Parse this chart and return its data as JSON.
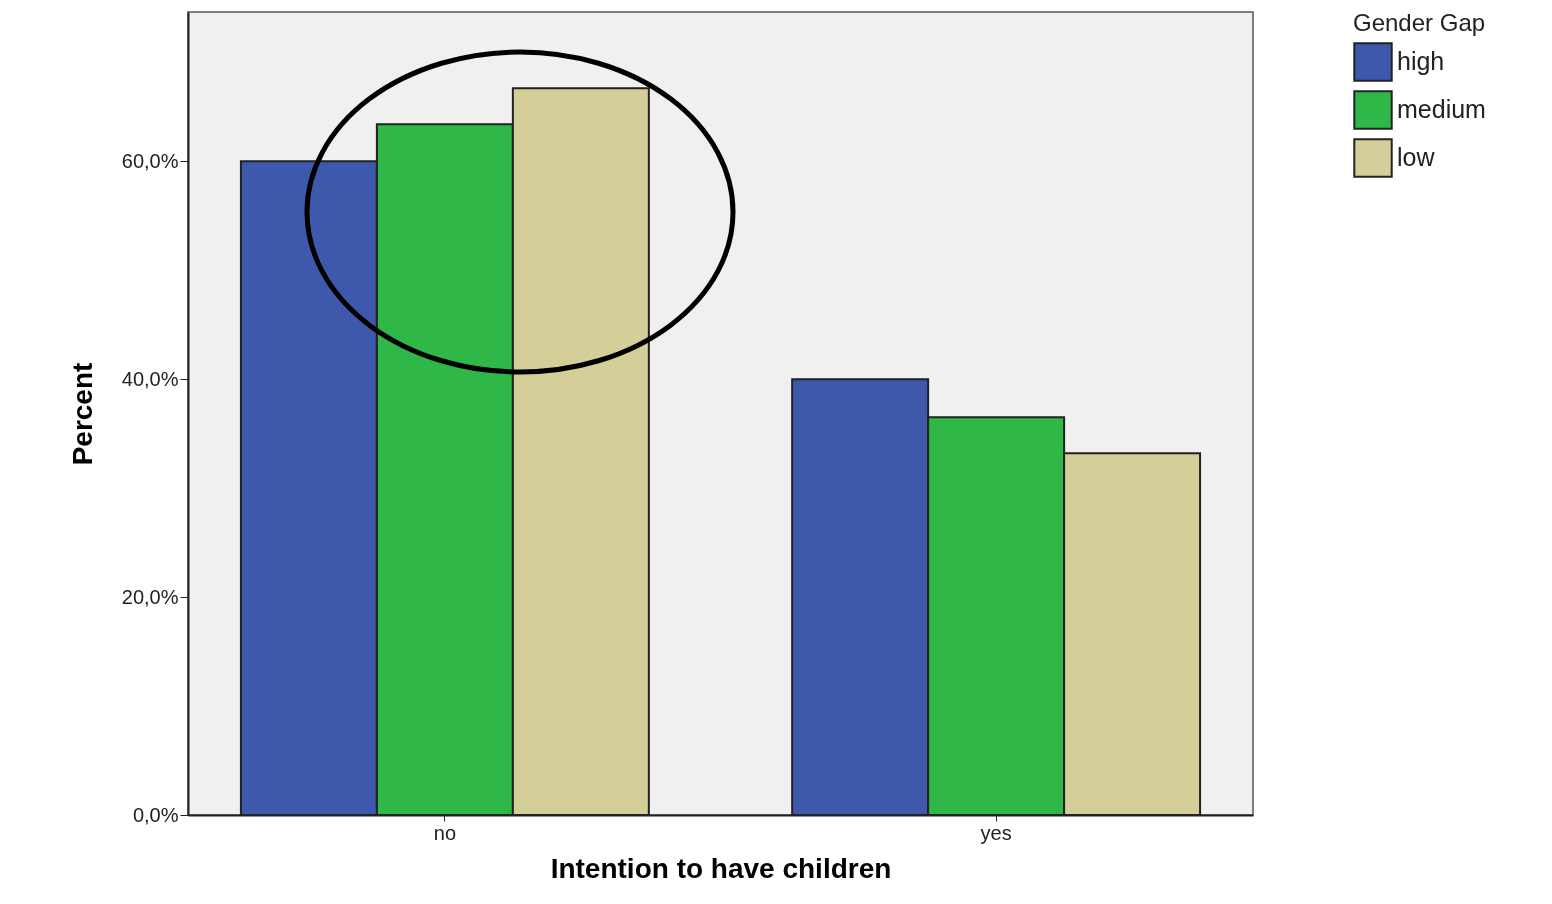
{
  "chart_data": {
    "type": "bar",
    "xlabel": "Intention to have children",
    "ylabel": "Percent",
    "legend_title": "Gender Gap",
    "categories": [
      "no",
      "yes"
    ],
    "series": [
      {
        "name": "high",
        "color": "#3e58ac",
        "values": [
          60.0,
          40.0
        ]
      },
      {
        "name": "medium",
        "color": "#2fb848",
        "values": [
          63.4,
          36.5
        ]
      },
      {
        "name": "low",
        "color": "#d4ce98",
        "values": [
          66.7,
          33.2
        ]
      }
    ],
    "ylim": [
      0,
      73.7
    ],
    "yticks": [
      {
        "value": 0,
        "label": "0,0%"
      },
      {
        "value": 20,
        "label": "20,0%"
      },
      {
        "value": 40,
        "label": "40,0%"
      },
      {
        "value": 60,
        "label": "60,0%"
      }
    ],
    "grid": false,
    "legend": "top right"
  }
}
